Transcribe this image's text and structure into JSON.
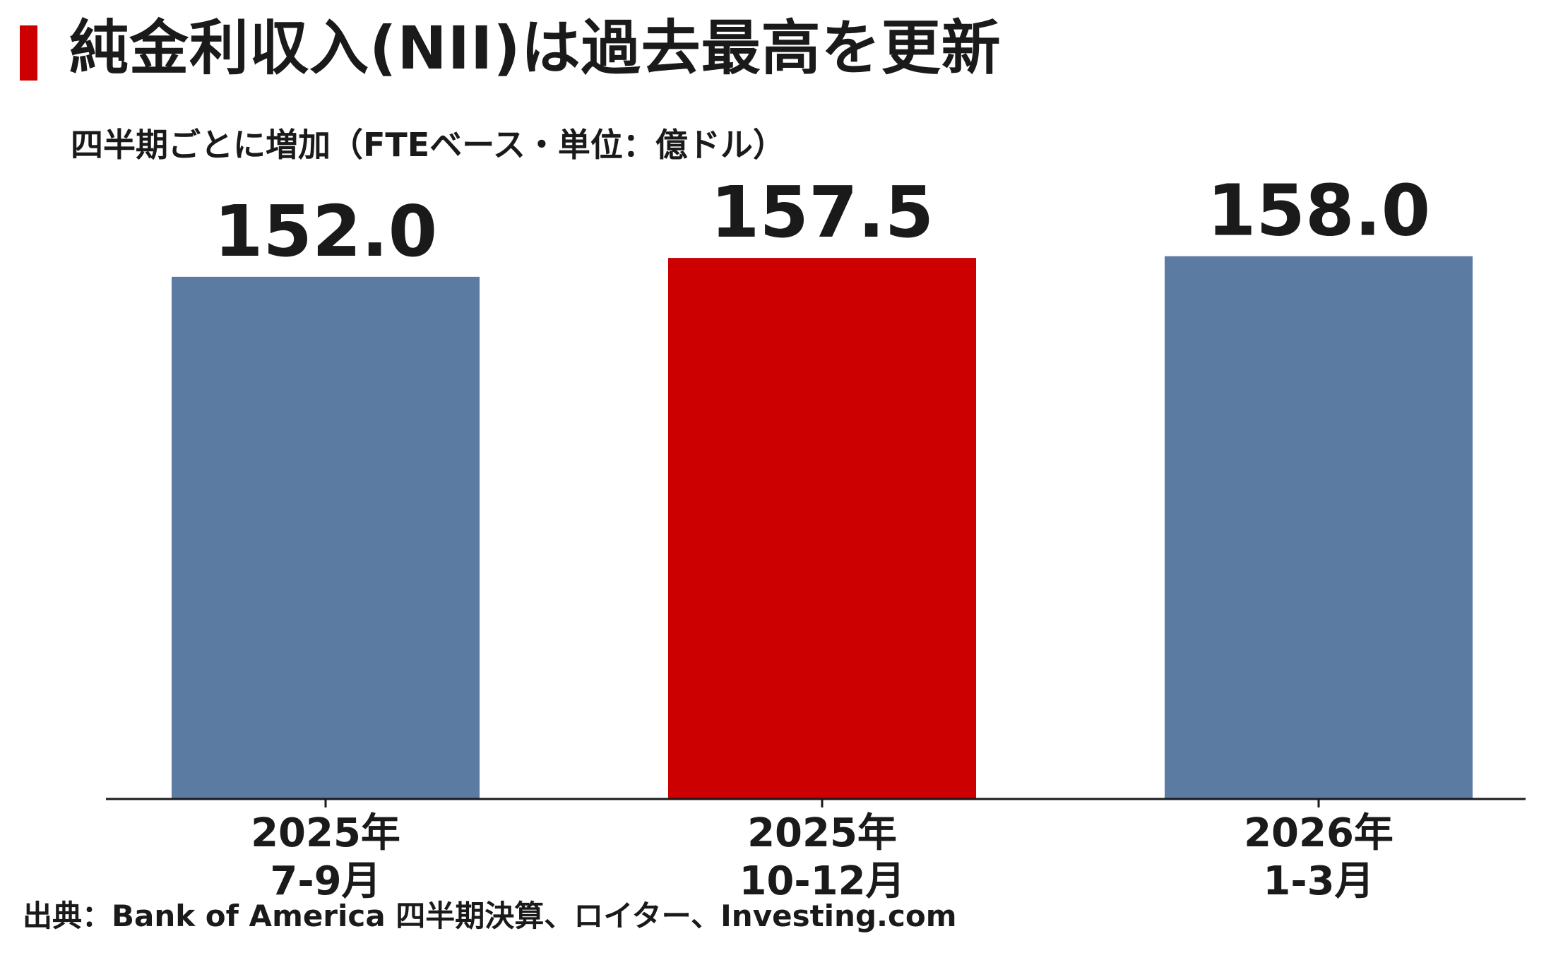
{
  "title": "純金利収入(NII)は過去最高を更新",
  "subtitle": "四半期ごとに増加（FTEベース・単位：億ドル）",
  "source": "出典：Bank of America 四半期決算、ロイター、Investing.com",
  "colors": {
    "accent": "#cc0000",
    "bar_default": "#5b7ba3",
    "bar_highlight": "#cc0000",
    "axis": "#1a1a1a"
  },
  "chart_data": {
    "type": "bar",
    "categories": [
      [
        "2025年",
        "7-9月"
      ],
      [
        "2025年",
        "10-12月"
      ],
      [
        "2026年",
        "1-3月"
      ]
    ],
    "values": [
      152.0,
      157.5,
      158.0
    ],
    "value_labels": [
      "152.0",
      "157.5",
      "158.0"
    ],
    "highlight_index": 1,
    "ylim": [
      0,
      175
    ],
    "grid": false,
    "legend": "none"
  }
}
